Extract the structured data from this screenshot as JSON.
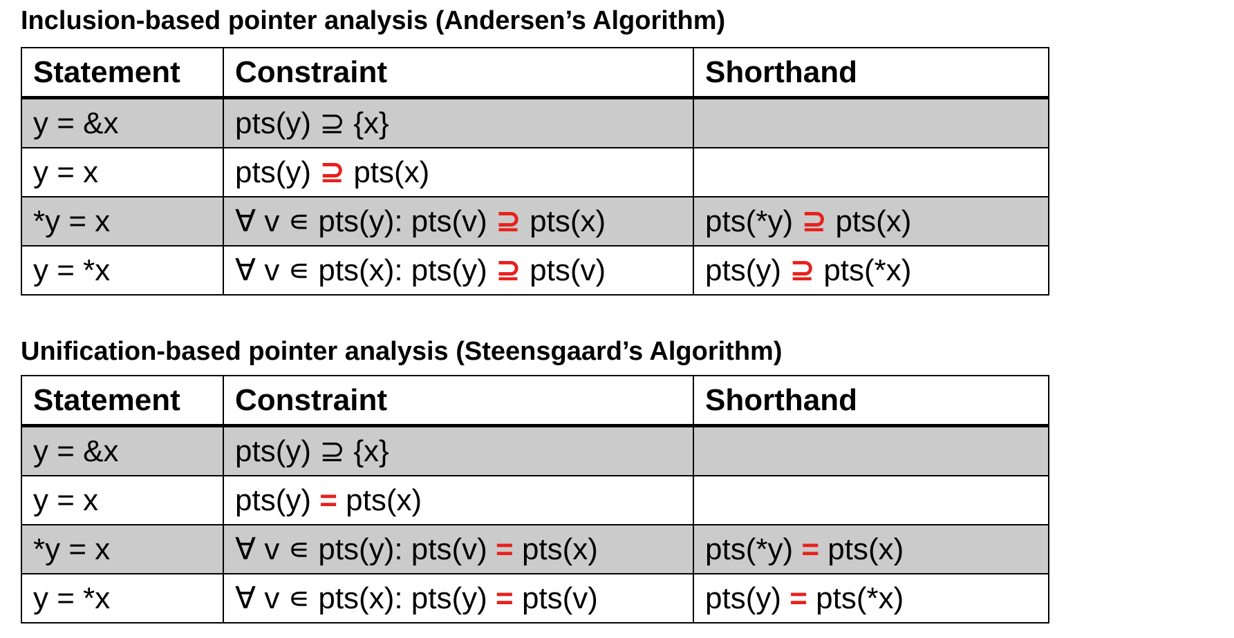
{
  "andersen": {
    "title": "Inclusion-based pointer analysis (Andersen’s Algorithm)",
    "headers": [
      "Statement",
      "Constraint",
      "Shorthand"
    ],
    "rows": [
      {
        "statement": "y = &x",
        "constraint_pre": "pts(y) ⊇ {x}",
        "constraint_op": "",
        "constraint_post": "",
        "shorthand_pre": "",
        "shorthand_op": "",
        "shorthand_post": ""
      },
      {
        "statement": "y = x",
        "constraint_pre": "pts(y) ",
        "constraint_op": "⊇",
        "constraint_post": " pts(x)",
        "shorthand_pre": "",
        "shorthand_op": "",
        "shorthand_post": ""
      },
      {
        "statement": "*y = x",
        "constraint_pre": "∀ v ∊ pts(y):  pts(v) ",
        "constraint_op": "⊇",
        "constraint_post": " pts(x)",
        "shorthand_pre": "pts(*y) ",
        "shorthand_op": "⊇",
        "shorthand_post": " pts(x)"
      },
      {
        "statement": "y = *x",
        "constraint_pre": "∀ v ∊ pts(x):  pts(y) ",
        "constraint_op": "⊇",
        "constraint_post": " pts(v)",
        "shorthand_pre": "pts(y) ",
        "shorthand_op": "⊇",
        "shorthand_post": " pts(*x)"
      }
    ]
  },
  "steensgaard": {
    "title": "Unification-based pointer analysis (Steensgaard’s Algorithm)",
    "headers": [
      "Statement",
      "Constraint",
      "Shorthand"
    ],
    "rows": [
      {
        "statement": "y = &x",
        "constraint_pre": "pts(y) ⊇ {x}",
        "constraint_op": "",
        "constraint_post": "",
        "shorthand_pre": "",
        "shorthand_op": "",
        "shorthand_post": ""
      },
      {
        "statement": "y = x",
        "constraint_pre": "pts(y) ",
        "constraint_op": "=",
        "constraint_post": " pts(x)",
        "shorthand_pre": "",
        "shorthand_op": "",
        "shorthand_post": ""
      },
      {
        "statement": "*y = x",
        "constraint_pre": "∀ v ∊ pts(y):  pts(v) ",
        "constraint_op": "=",
        "constraint_post": " pts(x)",
        "shorthand_pre": "pts(*y) ",
        "shorthand_op": "=",
        "shorthand_post": " pts(x)"
      },
      {
        "statement": "y = *x",
        "constraint_pre": "∀ v ∊ pts(x):  pts(y) ",
        "constraint_op": "=",
        "constraint_post": " pts(v)",
        "shorthand_pre": "pts(y) ",
        "shorthand_op": "=",
        "shorthand_post": " pts(*x)"
      }
    ]
  },
  "colors": {
    "shaded_row": "#cbcbcb",
    "operator": "#e8201c",
    "border": "#000000"
  }
}
